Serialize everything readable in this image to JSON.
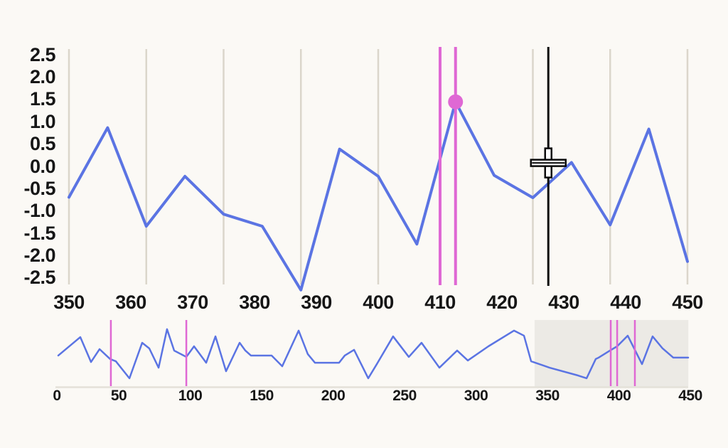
{
  "colors": {
    "series": "#5B74E3",
    "event": "#DF68D4",
    "cursor": "#0B0B0B",
    "gridline": "#DBD6CB",
    "axis_line": "#E4E1D9",
    "brush_fill": "#ECEAE5",
    "label": "#161616",
    "background": "#FBF9F5",
    "crosshair_fill": "#FFFFFF"
  },
  "chart_data": [
    {
      "id": "detail-view",
      "type": "line",
      "title": "",
      "xlabel": "",
      "ylabel": "",
      "xlim": [
        350,
        450
      ],
      "ylim": [
        -2.65,
        2.65
      ],
      "grid": "vertical-only",
      "x_tick_values": [
        350,
        360,
        370,
        380,
        390,
        400,
        410,
        420,
        430,
        440,
        450
      ],
      "x_tick_labels": [
        "350",
        "360",
        "370",
        "380",
        "390",
        "400",
        "410",
        "420",
        "430",
        "440",
        "450"
      ],
      "y_tick_values": [
        2.5,
        2.0,
        1.5,
        1.0,
        0.5,
        0.0,
        -0.5,
        -1.0,
        -1.5,
        -2.0,
        -2.5
      ],
      "y_tick_labels": [
        "2.5",
        "2.0",
        "1.5",
        "1.0",
        "0.5",
        "0.0",
        "-0.5",
        "-1.0",
        "-1.5",
        "-2.0",
        "-2.5"
      ],
      "gridline_values": [
        350,
        362.5,
        375,
        387.5,
        400,
        412.5,
        425,
        437.5,
        450
      ],
      "series": [
        {
          "name": "signal",
          "points": [
            [
              350,
              -0.7
            ],
            [
              356.25,
              0.86
            ],
            [
              362.5,
              -1.35
            ],
            [
              368.75,
              -0.23
            ],
            [
              375,
              -1.08
            ],
            [
              381.25,
              -1.35
            ],
            [
              387.5,
              -2.78
            ],
            [
              393.75,
              0.38
            ],
            [
              400,
              -0.23
            ],
            [
              406.25,
              -1.75
            ],
            [
              412.5,
              1.44
            ],
            [
              418.75,
              -0.21
            ],
            [
              425,
              -0.71
            ],
            [
              431.25,
              0.08
            ],
            [
              437.5,
              -1.32
            ],
            [
              443.75,
              0.83
            ],
            [
              450,
              -2.14
            ]
          ]
        }
      ],
      "event_line_x": [
        410,
        412.5
      ],
      "selected_point": {
        "x": 412.5,
        "y": 1.44
      },
      "cursor": {
        "x": 427.5,
        "y": 0.07
      }
    },
    {
      "id": "overview",
      "type": "line",
      "title": "",
      "xlabel": "",
      "ylabel": "",
      "xlim": [
        0,
        450
      ],
      "x_tick_values": [
        0,
        50,
        100,
        150,
        200,
        250,
        300,
        350,
        400,
        450
      ],
      "x_tick_labels": [
        "0",
        "50",
        "100",
        "150",
        "200",
        "250",
        "300",
        "350",
        "400",
        "450"
      ],
      "event_line_x": [
        44.5,
        97.3,
        394.3,
        398.8,
        411.2
      ],
      "brush_range": [
        341,
        448.6
      ],
      "series": [
        {
          "name": "signal-overview",
          "points": [
            [
              7.7,
              -0.78
            ],
            [
              23.1,
              0.78
            ],
            [
              30.6,
              -1.33
            ],
            [
              36.6,
              -0.24
            ],
            [
              44.0,
              -1.08
            ],
            [
              48.0,
              -1.27
            ],
            [
              57.5,
              -2.71
            ],
            [
              66.4,
              0.3
            ],
            [
              71.4,
              -0.18
            ],
            [
              77.9,
              -1.81
            ],
            [
              83.8,
              1.45
            ],
            [
              88.8,
              -0.36
            ],
            [
              97.3,
              -0.9
            ],
            [
              102.7,
              0.0
            ],
            [
              111.2,
              -1.39
            ],
            [
              117.7,
              0.84
            ],
            [
              125.1,
              -2.11
            ],
            [
              134.6,
              0.3
            ],
            [
              138.6,
              -0.36
            ],
            [
              142.5,
              -0.78
            ],
            [
              157.0,
              -0.78
            ],
            [
              164.4,
              -1.69
            ],
            [
              175.9,
              1.33
            ],
            [
              182.3,
              -0.66
            ],
            [
              187.3,
              -1.39
            ],
            [
              204.2,
              -1.39
            ],
            [
              208.2,
              -0.78
            ],
            [
              214.7,
              -0.3
            ],
            [
              224.6,
              -2.71
            ],
            [
              230.6,
              -1.51
            ],
            [
              242.0,
              0.84
            ],
            [
              253.0,
              -0.9
            ],
            [
              261.9,
              0.3
            ],
            [
              274.4,
              -1.81
            ],
            [
              286.8,
              -0.36
            ],
            [
              294.3,
              -1.2
            ],
            [
              308.7,
              0.0
            ],
            [
              326.6,
              1.33
            ],
            [
              333.6,
              0.9
            ],
            [
              338.6,
              -1.27
            ],
            [
              351.5,
              -1.81
            ],
            [
              371.4,
              -2.47
            ],
            [
              377.4,
              -2.71
            ],
            [
              383.8,
              -1.08
            ],
            [
              385.8,
              -0.96
            ],
            [
              393.8,
              -0.36
            ],
            [
              398.8,
              0.0
            ],
            [
              406.2,
              0.9
            ],
            [
              416.2,
              -1.51
            ],
            [
              423.6,
              0.84
            ],
            [
              430.6,
              -0.18
            ],
            [
              438.1,
              -0.96
            ],
            [
              448.5,
              -0.96
            ]
          ]
        }
      ]
    }
  ]
}
